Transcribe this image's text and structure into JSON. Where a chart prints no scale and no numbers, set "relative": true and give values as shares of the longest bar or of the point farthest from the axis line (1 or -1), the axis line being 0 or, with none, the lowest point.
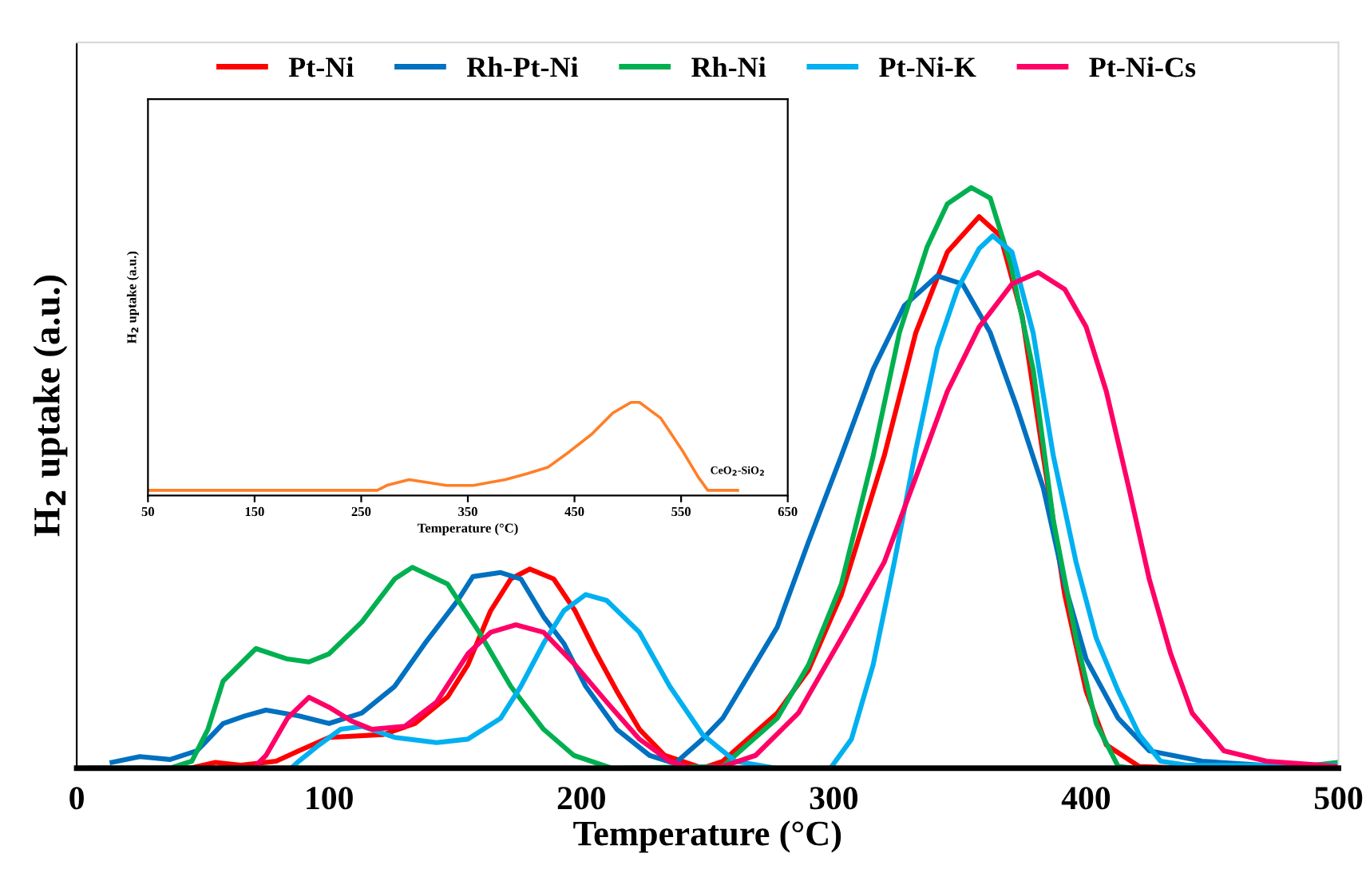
{
  "chart_data": [
    {
      "type": "line",
      "xlabel": "Temperature (°C)",
      "ylabel": "H$_{2}$ uptake (a.u.)",
      "relative": true,
      "xlim": [
        0,
        500
      ],
      "xticks": [
        0,
        100,
        200,
        300,
        400,
        500
      ],
      "legend": "top",
      "grid": false,
      "marker": "none",
      "line_style": "solid",
      "series": [
        {
          "name": "Pt-Ni",
          "color": "#ff0000",
          "x": [
            0,
            45,
            55,
            65,
            79,
            88,
            100,
            121.5,
            134,
            147,
            155,
            164,
            172,
            179.5,
            189,
            197.5,
            206,
            214,
            223,
            233,
            248,
            256,
            277.6,
            290,
            303,
            320,
            332.5,
            345,
            357.6,
            366,
            374.7,
            383,
            391.5,
            400,
            408,
            421,
            440,
            500
          ],
          "values": [
            0,
            0,
            0.01,
            0.005,
            0.012,
            0.03,
            0.053,
            0.058,
            0.077,
            0.123,
            0.178,
            0.271,
            0.326,
            0.343,
            0.326,
            0.271,
            0.197,
            0.133,
            0.067,
            0.022,
            0,
            0.012,
            0.095,
            0.169,
            0.299,
            0.538,
            0.75,
            0.889,
            0.95,
            0.917,
            0.778,
            0.538,
            0.299,
            0.133,
            0.04,
            0.003,
            0,
            0
          ]
        },
        {
          "name": "Rh-Pt-Ni",
          "color": "#0070c0",
          "x": [
            14,
            25,
            37,
            47.7,
            58,
            66.6,
            75,
            88,
            100,
            113,
            126,
            138,
            151,
            157,
            168,
            176,
            185,
            193,
            201.7,
            214,
            227,
            237,
            248,
            256,
            277.6,
            290,
            303,
            315.6,
            328,
            341,
            351,
            362,
            372.6,
            383,
            391.5,
            400,
            412.7,
            425,
            446,
            470,
            500
          ],
          "values": [
            0.01,
            0.02,
            0.015,
            0.03,
            0.077,
            0.09,
            0.1,
            0.09,
            0.077,
            0.095,
            0.141,
            0.215,
            0.289,
            0.33,
            0.337,
            0.326,
            0.261,
            0.215,
            0.141,
            0.067,
            0.022,
            0.008,
            0.05,
            0.086,
            0.243,
            0.39,
            0.538,
            0.687,
            0.797,
            0.848,
            0.834,
            0.75,
            0.621,
            0.483,
            0.317,
            0.188,
            0.086,
            0.03,
            0.012,
            0.005,
            0.005
          ]
        },
        {
          "name": "Rh-Ni",
          "color": "#00b050",
          "x": [
            5,
            37,
            45.6,
            52,
            58,
            71,
            83.5,
            92,
            100,
            113,
            126,
            133,
            147,
            159.5,
            172,
            185,
            197,
            212,
            256,
            277.6,
            290,
            303,
            315.6,
            326,
            337,
            345,
            354.5,
            362,
            370,
            379,
            387,
            396,
            404,
            412.7,
            419,
            480,
            500
          ],
          "values": [
            0,
            0,
            0.012,
            0.067,
            0.15,
            0.206,
            0.188,
            0.183,
            0.197,
            0.252,
            0.326,
            0.346,
            0.317,
            0.234,
            0.141,
            0.067,
            0.022,
            0,
            0.003,
            0.086,
            0.178,
            0.317,
            0.538,
            0.75,
            0.898,
            0.972,
            1,
            0.982,
            0.87,
            0.687,
            0.427,
            0.224,
            0.077,
            0.003,
            0,
            0,
            0.01
          ]
        },
        {
          "name": "Pt-Ni-K",
          "color": "#00b0f0",
          "x": [
            30,
            85,
            88,
            96,
            104.6,
            113,
            126,
            142.6,
            155,
            168,
            176,
            185,
            193,
            201.7,
            210,
            223,
            235,
            248,
            261,
            277,
            298.7,
            307,
            315.6,
            324,
            332.5,
            341,
            349,
            357.6,
            363,
            370.6,
            379,
            387,
            396,
            404,
            412.7,
            421,
            429.5,
            440,
            500
          ],
          "values": [
            0,
            0,
            0.012,
            0.04,
            0.067,
            0.072,
            0.053,
            0.044,
            0.05,
            0.086,
            0.141,
            0.215,
            0.271,
            0.299,
            0.289,
            0.234,
            0.141,
            0.058,
            0.012,
            0,
            0,
            0.05,
            0.178,
            0.355,
            0.548,
            0.723,
            0.825,
            0.895,
            0.917,
            0.889,
            0.75,
            0.538,
            0.355,
            0.224,
            0.133,
            0.058,
            0.012,
            0.005,
            0.005
          ]
        },
        {
          "name": "Pt-Ni-Cs",
          "color": "#ff0066",
          "x": [
            40,
            70,
            75,
            83.5,
            92,
            100,
            109,
            117,
            130,
            142.6,
            155,
            164,
            174,
            185,
            197.5,
            210,
            223,
            235,
            244,
            256,
            269,
            286,
            303,
            320,
            332.5,
            345,
            357.6,
            370.6,
            381,
            391.5,
            400,
            408,
            416.9,
            425,
            433.5,
            442,
            454.6,
            471.5,
            500
          ],
          "values": [
            0,
            0,
            0.022,
            0.086,
            0.122,
            0.105,
            0.081,
            0.067,
            0.072,
            0.114,
            0.197,
            0.234,
            0.247,
            0.234,
            0.178,
            0.114,
            0.05,
            0.012,
            0,
            0.003,
            0.022,
            0.095,
            0.224,
            0.355,
            0.501,
            0.649,
            0.76,
            0.834,
            0.854,
            0.825,
            0.76,
            0.649,
            0.483,
            0.326,
            0.197,
            0.095,
            0.03,
            0.012,
            0.003
          ]
        }
      ]
    },
    {
      "type": "line",
      "xlabel": "Temperature (°C)",
      "ylabel": "H$_{2}$ uptake (a.u.)",
      "relative": true,
      "xlim": [
        50,
        650
      ],
      "xticks": [
        50,
        150,
        250,
        350,
        450,
        550,
        650
      ],
      "legend": false,
      "grid": false,
      "marker": "none",
      "line_style": "solid",
      "series": [
        {
          "name": "CeO$_{2}$-SiO$_{2}$",
          "color": "#ff7f27",
          "x": [
            50,
            265,
            275,
            295,
            318,
            330,
            355,
            385,
            405,
            425,
            445,
            466,
            486,
            503,
            511,
            531,
            551,
            566,
            575,
            603
          ],
          "values": [
            0.057,
            0.057,
            0.114,
            0.171,
            0.131,
            0.109,
            0.109,
            0.171,
            0.234,
            0.303,
            0.469,
            0.657,
            0.886,
            1,
            1,
            0.829,
            0.486,
            0.2,
            0.057,
            0.057
          ]
        }
      ]
    }
  ]
}
